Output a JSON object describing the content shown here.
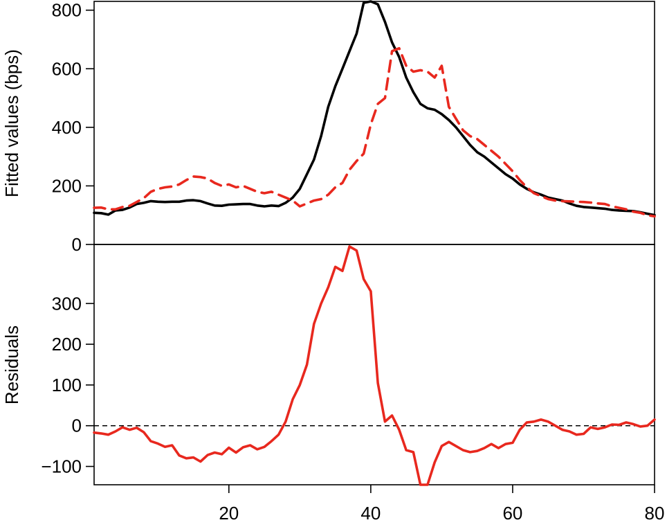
{
  "chart_data": [
    {
      "panel": "top",
      "type": "line",
      "ylabel": "Fitted values (bps)",
      "xlim": [
        1,
        80
      ],
      "ylim": [
        0,
        830
      ],
      "yticks": [
        0,
        200,
        400,
        600,
        800
      ],
      "ytick_labels": [
        "0",
        "200",
        "400",
        "600",
        "800"
      ],
      "series": [
        {
          "style": "solid",
          "color": "#000000",
          "x": [
            1,
            2,
            3,
            4,
            5,
            6,
            7,
            8,
            9,
            10,
            11,
            12,
            13,
            14,
            15,
            16,
            17,
            18,
            19,
            20,
            21,
            22,
            23,
            24,
            25,
            26,
            27,
            28,
            29,
            30,
            31,
            32,
            33,
            34,
            35,
            36,
            37,
            38,
            39,
            40,
            41,
            42,
            43,
            44,
            45,
            46,
            47,
            48,
            49,
            50,
            51,
            52,
            53,
            54,
            55,
            56,
            57,
            58,
            59,
            60,
            61,
            62,
            63,
            64,
            65,
            66,
            67,
            68,
            69,
            70,
            71,
            72,
            73,
            74,
            75,
            76,
            77,
            78,
            79,
            80
          ],
          "values": [
            108,
            107,
            102,
            116,
            118,
            126,
            138,
            142,
            148,
            146,
            145,
            146,
            146,
            150,
            151,
            148,
            140,
            133,
            132,
            136,
            137,
            138,
            138,
            133,
            130,
            133,
            131,
            142,
            160,
            190,
            240,
            290,
            370,
            470,
            540,
            600,
            660,
            720,
            825,
            830,
            820,
            760,
            690,
            640,
            570,
            520,
            480,
            465,
            460,
            445,
            425,
            400,
            370,
            340,
            315,
            300,
            280,
            260,
            240,
            225,
            205,
            190,
            178,
            170,
            160,
            155,
            150,
            140,
            132,
            128,
            126,
            124,
            122,
            118,
            116,
            115,
            114,
            110,
            105,
            100
          ]
        },
        {
          "style": "dashed",
          "color": "#e8281e",
          "x": [
            1,
            2,
            3,
            4,
            5,
            6,
            7,
            8,
            9,
            10,
            11,
            12,
            13,
            14,
            15,
            16,
            17,
            18,
            19,
            20,
            21,
            22,
            23,
            24,
            25,
            26,
            27,
            28,
            29,
            30,
            31,
            32,
            33,
            34,
            35,
            36,
            37,
            38,
            39,
            40,
            41,
            42,
            43,
            44,
            45,
            46,
            47,
            48,
            49,
            50,
            51,
            52,
            53,
            54,
            55,
            56,
            57,
            58,
            59,
            60,
            61,
            62,
            63,
            64,
            65,
            66,
            67,
            68,
            69,
            70,
            71,
            72,
            73,
            74,
            75,
            76,
            77,
            78,
            79,
            80
          ],
          "values": [
            125,
            126,
            120,
            120,
            128,
            132,
            145,
            158,
            180,
            190,
            195,
            198,
            205,
            220,
            232,
            230,
            225,
            210,
            200,
            205,
            195,
            200,
            190,
            180,
            175,
            180,
            170,
            160,
            150,
            130,
            140,
            150,
            155,
            170,
            195,
            210,
            255,
            285,
            310,
            410,
            480,
            500,
            660,
            670,
            610,
            590,
            595,
            590,
            570,
            610,
            470,
            430,
            390,
            370,
            360,
            340,
            320,
            300,
            275,
            250,
            220,
            195,
            175,
            165,
            155,
            150,
            148,
            147,
            146,
            145,
            143,
            140,
            138,
            130,
            125,
            120,
            112,
            108,
            100,
            96
          ]
        }
      ]
    },
    {
      "panel": "bottom",
      "type": "line",
      "ylabel": "Residuals",
      "xlim": [
        1,
        80
      ],
      "ylim": [
        -145,
        445
      ],
      "yticks": [
        -100,
        0,
        100,
        200,
        300
      ],
      "ytick_labels": [
        "−100",
        "0",
        "100",
        "200",
        "300"
      ],
      "xticks": [
        20,
        40,
        60,
        80
      ],
      "xtick_labels": [
        "20",
        "40",
        "60",
        "80"
      ],
      "reference_line": {
        "y": 0,
        "style": "dashed",
        "color": "#000000"
      },
      "series": [
        {
          "style": "solid",
          "color": "#e8281e",
          "x": [
            1,
            2,
            3,
            4,
            5,
            6,
            7,
            8,
            9,
            10,
            11,
            12,
            13,
            14,
            15,
            16,
            17,
            18,
            19,
            20,
            21,
            22,
            23,
            24,
            25,
            26,
            27,
            28,
            29,
            30,
            31,
            32,
            33,
            34,
            35,
            36,
            37,
            38,
            39,
            40,
            41,
            42,
            43,
            44,
            45,
            46,
            47,
            48,
            49,
            50,
            51,
            52,
            53,
            54,
            55,
            56,
            57,
            58,
            59,
            60,
            61,
            62,
            63,
            64,
            65,
            66,
            67,
            68,
            69,
            70,
            71,
            72,
            73,
            74,
            75,
            76,
            77,
            78,
            79,
            80
          ],
          "values": [
            -17,
            -19,
            -22,
            -14,
            -4,
            -10,
            -5,
            -16,
            -38,
            -44,
            -52,
            -48,
            -73,
            -80,
            -78,
            -88,
            -72,
            -66,
            -70,
            -54,
            -66,
            -53,
            -48,
            -58,
            -52,
            -38,
            -22,
            10,
            65,
            100,
            150,
            250,
            300,
            340,
            390,
            380,
            440,
            430,
            360,
            330,
            105,
            10,
            25,
            -10,
            -60,
            -65,
            -145,
            -145,
            -90,
            -50,
            -40,
            -50,
            -60,
            -65,
            -62,
            -55,
            -45,
            -55,
            -45,
            -42,
            -10,
            8,
            10,
            15,
            10,
            0,
            -10,
            -14,
            -22,
            -20,
            -4,
            -8,
            -4,
            3,
            2,
            8,
            4,
            -2,
            0,
            15
          ]
        }
      ]
    }
  ]
}
